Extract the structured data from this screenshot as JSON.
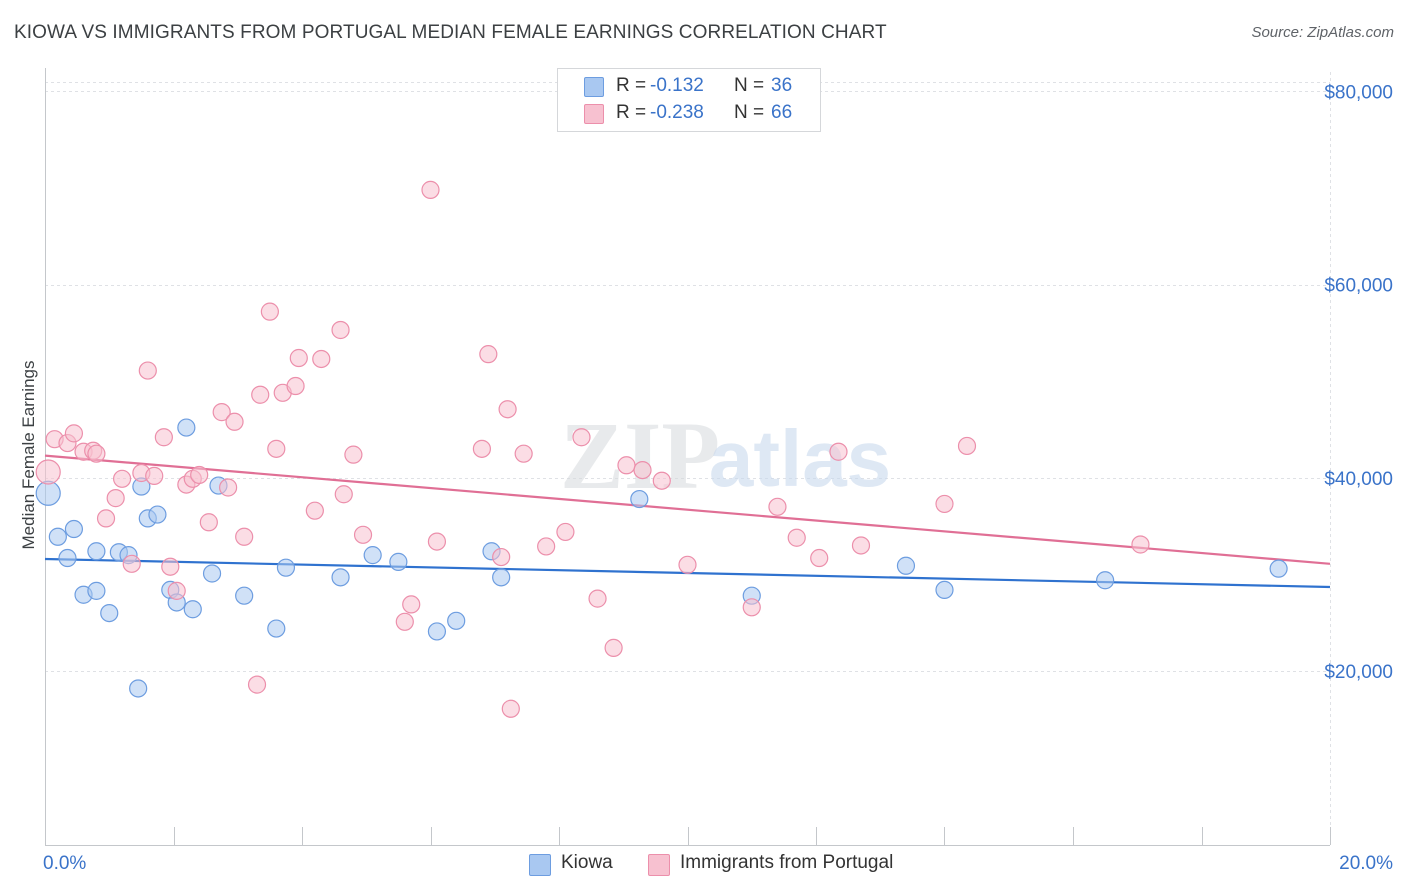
{
  "title": "KIOWA VS IMMIGRANTS FROM PORTUGAL MEDIAN FEMALE EARNINGS CORRELATION CHART",
  "source": "Source: ZipAtlas.com",
  "watermark": {
    "zip": "ZIP",
    "atlas": "atlas"
  },
  "stats": [
    {
      "r_label": "R =",
      "r_value": "-0.132",
      "n_label": "N =",
      "n_value": "36",
      "color": "#a9c8f1",
      "border": "#6d9de0"
    },
    {
      "r_label": "R =",
      "r_value": "-0.238",
      "n_label": "N =",
      "n_value": "66",
      "color": "#f7c1d0",
      "border": "#ec8fab"
    }
  ],
  "legend": [
    {
      "label": "Kiowa",
      "color": "#a9c8f1",
      "border": "#6d9de0"
    },
    {
      "label": "Immigrants from Portugal",
      "color": "#f7c1d0",
      "border": "#ec8fab"
    }
  ],
  "chart_data": {
    "type": "scatter",
    "ylabel": "Median Female Earnings",
    "xlim": [
      0,
      20
    ],
    "ylim": [
      2000,
      82000
    ],
    "x_tick_labels": [
      "0.0%",
      "20.0%"
    ],
    "y_ticks": [
      20000,
      40000,
      60000,
      80000
    ],
    "y_tick_labels": [
      "$20,000",
      "$40,000",
      "$60,000",
      "$80,000"
    ],
    "grid": true,
    "series": [
      {
        "name": "Kiowa",
        "point_color": "#a9c8f1",
        "edge_color": "#6d9de0",
        "trend_color": "#2f72cf",
        "trend": [
          [
            0,
            31600
          ],
          [
            20,
            28700
          ]
        ],
        "points": [
          [
            0.05,
            38400
          ],
          [
            0.2,
            33900
          ],
          [
            0.35,
            31700
          ],
          [
            0.45,
            34700
          ],
          [
            0.6,
            27900
          ],
          [
            0.8,
            28300
          ],
          [
            0.8,
            32400
          ],
          [
            1.0,
            26000
          ],
          [
            1.15,
            32300
          ],
          [
            1.3,
            32000
          ],
          [
            1.45,
            18200
          ],
          [
            1.5,
            39100
          ],
          [
            1.6,
            35800
          ],
          [
            1.75,
            36200
          ],
          [
            1.95,
            28400
          ],
          [
            2.05,
            27100
          ],
          [
            2.2,
            45200
          ],
          [
            2.3,
            26400
          ],
          [
            2.6,
            30100
          ],
          [
            2.7,
            39200
          ],
          [
            3.1,
            27800
          ],
          [
            3.6,
            24400
          ],
          [
            3.75,
            30700
          ],
          [
            4.6,
            29700
          ],
          [
            5.1,
            32000
          ],
          [
            5.5,
            31300
          ],
          [
            6.1,
            24100
          ],
          [
            6.4,
            25200
          ],
          [
            6.95,
            32400
          ],
          [
            7.1,
            29700
          ],
          [
            9.25,
            37800
          ],
          [
            11.0,
            27800
          ],
          [
            13.4,
            30900
          ],
          [
            14.0,
            28400
          ],
          [
            16.5,
            29400
          ],
          [
            19.2,
            30600
          ]
        ]
      },
      {
        "name": "Immigrants from Portugal",
        "point_color": "#f7c1d0",
        "edge_color": "#ec8fab",
        "trend_color": "#e06f95",
        "trend": [
          [
            0,
            42300
          ],
          [
            20,
            31100
          ]
        ],
        "points": [
          [
            0.05,
            40600
          ],
          [
            0.15,
            44000
          ],
          [
            0.35,
            43600
          ],
          [
            0.45,
            44600
          ],
          [
            0.6,
            42700
          ],
          [
            0.75,
            42800
          ],
          [
            0.8,
            42500
          ],
          [
            0.95,
            35800
          ],
          [
            1.1,
            37900
          ],
          [
            1.2,
            39900
          ],
          [
            1.35,
            31100
          ],
          [
            1.5,
            40500
          ],
          [
            1.6,
            51100
          ],
          [
            1.7,
            40200
          ],
          [
            1.85,
            44200
          ],
          [
            1.95,
            30800
          ],
          [
            2.05,
            28300
          ],
          [
            2.2,
            39300
          ],
          [
            2.3,
            39900
          ],
          [
            2.4,
            40300
          ],
          [
            2.55,
            35400
          ],
          [
            2.75,
            46800
          ],
          [
            2.85,
            39000
          ],
          [
            2.95,
            45800
          ],
          [
            3.1,
            33900
          ],
          [
            3.3,
            18600
          ],
          [
            3.35,
            48600
          ],
          [
            3.5,
            57200
          ],
          [
            3.6,
            43000
          ],
          [
            3.7,
            48800
          ],
          [
            3.9,
            49500
          ],
          [
            3.95,
            52400
          ],
          [
            4.2,
            36600
          ],
          [
            4.3,
            52300
          ],
          [
            4.6,
            55300
          ],
          [
            4.65,
            38300
          ],
          [
            4.8,
            42400
          ],
          [
            4.95,
            34100
          ],
          [
            5.6,
            25100
          ],
          [
            5.7,
            26900
          ],
          [
            6.1,
            33400
          ],
          [
            6.0,
            69800
          ],
          [
            6.8,
            43000
          ],
          [
            6.9,
            52800
          ],
          [
            7.1,
            31800
          ],
          [
            7.2,
            47100
          ],
          [
            7.25,
            16100
          ],
          [
            7.45,
            42500
          ],
          [
            7.8,
            32900
          ],
          [
            8.1,
            34400
          ],
          [
            8.35,
            44200
          ],
          [
            8.6,
            27500
          ],
          [
            8.85,
            22400
          ],
          [
            9.05,
            41300
          ],
          [
            9.3,
            40800
          ],
          [
            9.6,
            39700
          ],
          [
            10.0,
            31000
          ],
          [
            11.0,
            26600
          ],
          [
            11.4,
            37000
          ],
          [
            11.7,
            33800
          ],
          [
            12.05,
            31700
          ],
          [
            12.35,
            42700
          ],
          [
            12.7,
            33000
          ],
          [
            14.0,
            37300
          ],
          [
            14.35,
            43300
          ],
          [
            17.05,
            33100
          ]
        ]
      }
    ]
  }
}
